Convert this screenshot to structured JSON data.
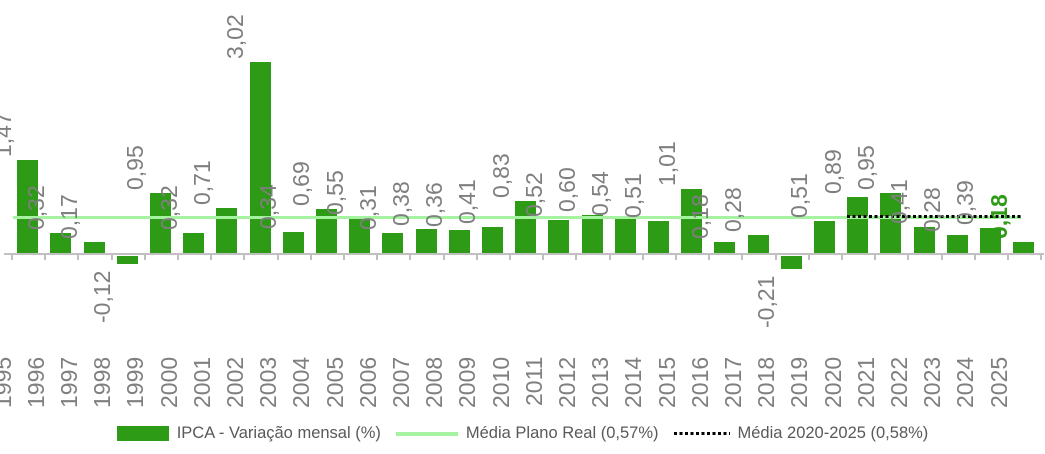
{
  "chart_data": {
    "type": "bar",
    "title": "",
    "xlabel": "",
    "ylabel": "",
    "grid": false,
    "ylim": [
      -0.4,
      3.3
    ],
    "categories": [
      "1995",
      "1996",
      "1997",
      "1998",
      "1999",
      "2000",
      "2001",
      "2002",
      "2003",
      "2004",
      "2005",
      "2006",
      "2007",
      "2008",
      "2009",
      "2010",
      "2011",
      "2012",
      "2013",
      "2014",
      "2015",
      "2016",
      "2017",
      "2018",
      "2019",
      "2020",
      "2021",
      "2022",
      "2023",
      "2024",
      "2025"
    ],
    "values": [
      1.47,
      0.32,
      0.17,
      -0.12,
      0.95,
      0.32,
      0.71,
      3.02,
      0.34,
      0.69,
      0.55,
      0.31,
      0.38,
      0.36,
      0.41,
      0.83,
      0.52,
      0.6,
      0.54,
      0.51,
      1.01,
      0.18,
      0.28,
      -0.21,
      0.51,
      0.89,
      0.95,
      0.41,
      0.28,
      0.39,
      0.18
    ],
    "value_labels": [
      "1,47",
      "0,32",
      "0,17",
      "-0,12",
      "0,95",
      "0,32",
      "0,71",
      "3,02",
      "0,34",
      "0,69",
      "0,55",
      "0,31",
      "0,38",
      "0,36",
      "0,41",
      "0,83",
      "0,52",
      "0,60",
      "0,54",
      "0,51",
      "1,01",
      "0,18",
      "0,28",
      "-0,21",
      "0,51",
      "0,89",
      "0,95",
      "0,41",
      "0,28",
      "0,39",
      "0,18"
    ],
    "series_name": "IPCA - Variação mensal (%)",
    "highlight_last_label": true,
    "ref_lines": [
      {
        "name": "media-plano-real",
        "label": "Média Plano Real (0,57%)",
        "value": 0.57,
        "style": "solid",
        "color": "#a5f3a1",
        "from_category": "1995",
        "to_category": "2025"
      },
      {
        "name": "media-2020-2025",
        "label": "Média 2020-2025 (0,58%)",
        "value": 0.58,
        "style": "dotted",
        "color": "#000000",
        "from_category": "2020",
        "to_category": "2025"
      }
    ],
    "legend": {
      "position": "bottom",
      "items": [
        {
          "label": "IPCA - Variação mensal (%)",
          "swatch": "bar"
        },
        {
          "label": "Média Plano Real (0,57%)",
          "swatch": "line"
        },
        {
          "label": "Média 2020-2025 (0,58%)",
          "swatch": "dotted"
        }
      ]
    },
    "colors": {
      "bar": "#2e9b17",
      "highlight_label": "#2e9b17",
      "ref_solid": "#a5f3a1",
      "ref_dotted": "#000000",
      "tick_labels": "#7f7f7f",
      "value_labels": "#7f7f7f",
      "legend_text": "#595959",
      "axis": "#c0c0c0"
    }
  }
}
